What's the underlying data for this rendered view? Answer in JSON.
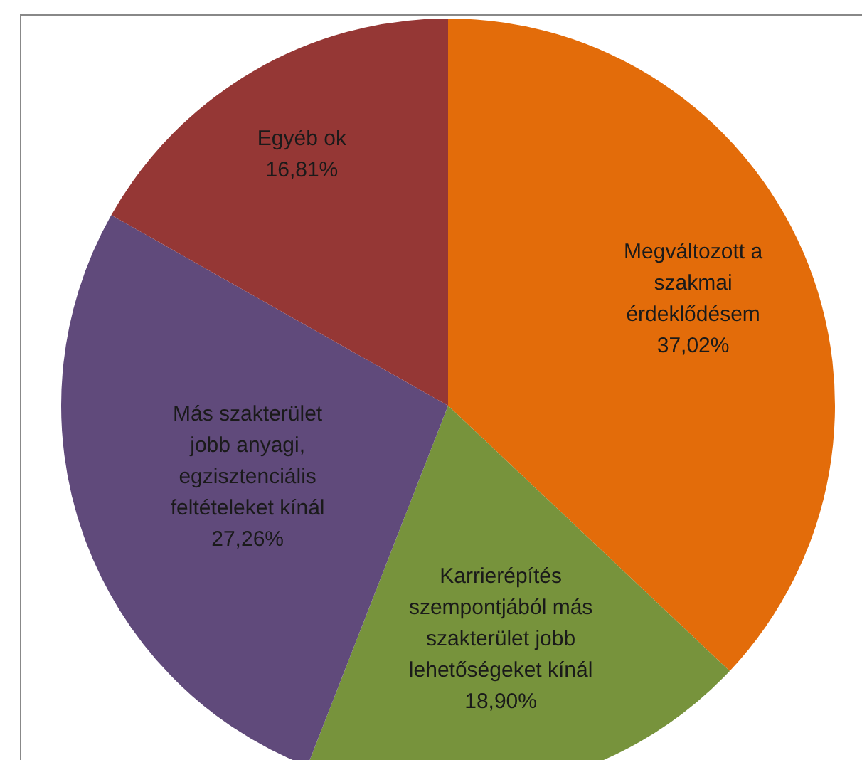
{
  "chart_data": {
    "type": "pie",
    "categories": [
      "Megváltozott a szakmai érdeklődésem",
      "Karrierépítés szempontjából más szakterület jobb lehetőségeket kínál",
      "Más szakterület jobb anyagi, egzisztenciális feltételeket kínál",
      "Egyéb ok"
    ],
    "values": [
      37.02,
      18.9,
      27.26,
      16.81
    ],
    "value_labels": [
      "37,02%",
      "18,90%",
      "27,26%",
      "16,81%"
    ],
    "colors": [
      "#e36c0a",
      "#77933c",
      "#604a7b",
      "#953735"
    ],
    "legend": false
  }
}
